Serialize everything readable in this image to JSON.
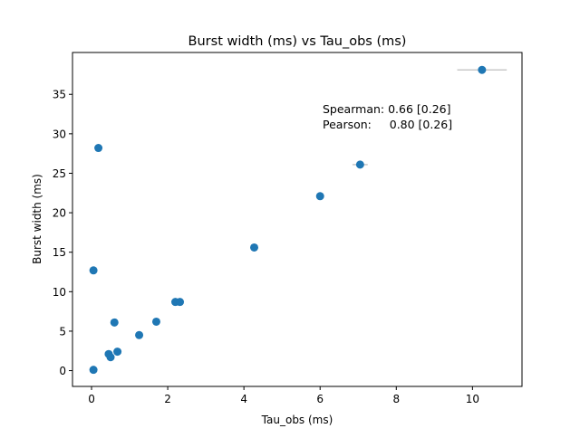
{
  "chart_data": {
    "type": "scatter",
    "title": "Burst width (ms) vs Tau_obs (ms)",
    "xlabel": "Tau_obs (ms)",
    "ylabel": "Burst width (ms)",
    "xlim": [
      -0.5,
      11.3
    ],
    "ylim": [
      -2.0,
      40.3
    ],
    "xticks": [
      0,
      2,
      4,
      6,
      8,
      10
    ],
    "yticks": [
      0,
      5,
      10,
      15,
      20,
      25,
      30,
      35
    ],
    "grid": false,
    "marker_color": "#1f77b4",
    "errorbar_color": "#c8c8c8",
    "annotations": [
      "Spearman: 0.66 [0.26]",
      "Pearson:     0.80 [0.26]"
    ],
    "points": [
      {
        "x": 0.05,
        "y": 0.1
      },
      {
        "x": 0.05,
        "y": 12.7
      },
      {
        "x": 0.18,
        "y": 28.2
      },
      {
        "x": 0.45,
        "y": 2.1
      },
      {
        "x": 0.5,
        "y": 1.7
      },
      {
        "x": 0.6,
        "y": 6.1
      },
      {
        "x": 0.68,
        "y": 2.4
      },
      {
        "x": 1.25,
        "y": 4.5
      },
      {
        "x": 1.7,
        "y": 6.2
      },
      {
        "x": 2.2,
        "y": 8.7
      },
      {
        "x": 2.32,
        "y": 8.7
      },
      {
        "x": 4.27,
        "y": 15.6
      },
      {
        "x": 6.0,
        "y": 22.1
      },
      {
        "x": 7.05,
        "y": 26.1
      },
      {
        "x": 10.25,
        "y": 38.1
      }
    ],
    "x_errors": [
      {
        "x": 2.2,
        "y": 8.7,
        "xerr": 0.05
      },
      {
        "x": 6.0,
        "y": 22.1,
        "xerr": 0.08
      },
      {
        "x": 7.05,
        "y": 26.1,
        "xerr": 0.2
      },
      {
        "x": 10.25,
        "y": 38.1,
        "xerr": 0.65
      }
    ]
  }
}
